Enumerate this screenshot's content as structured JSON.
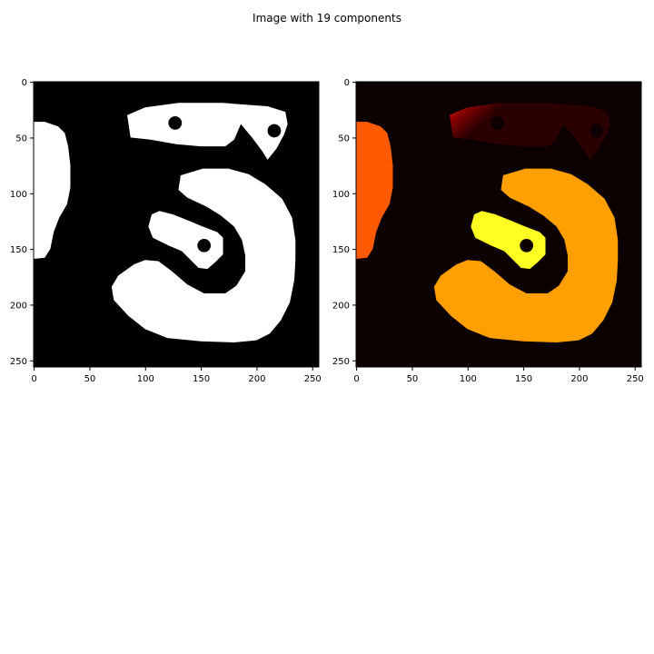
{
  "figure": {
    "title": "Image with 19 components"
  },
  "chart_data": [
    {
      "type": "heatmap",
      "colormap": "gray",
      "colors": {
        "background": "#000000",
        "foreground": "#ffffff"
      },
      "xlim": [
        0,
        256
      ],
      "ylim": [
        256,
        0
      ],
      "xticks": [
        0,
        50,
        100,
        150,
        200,
        250
      ],
      "yticks": [
        0,
        50,
        100,
        150,
        200,
        250
      ],
      "xlabel": "",
      "ylabel": "",
      "grid": false
    },
    {
      "type": "heatmap",
      "colormap": "hot",
      "colors": {
        "background": "#0c0000",
        "comp_upper": "#2a0000",
        "comp_upper_edge": "#ff1a00",
        "comp_left": "#ff5a00",
        "comp_hook": "#ffa000",
        "comp_arm": "#ffff22"
      },
      "xlim": [
        0,
        256
      ],
      "ylim": [
        256,
        0
      ],
      "xticks": [
        0,
        50,
        100,
        150,
        200,
        250
      ],
      "yticks": [
        0,
        50,
        100,
        150,
        200,
        250
      ],
      "xlabel": "",
      "ylabel": "",
      "grid": false
    }
  ]
}
